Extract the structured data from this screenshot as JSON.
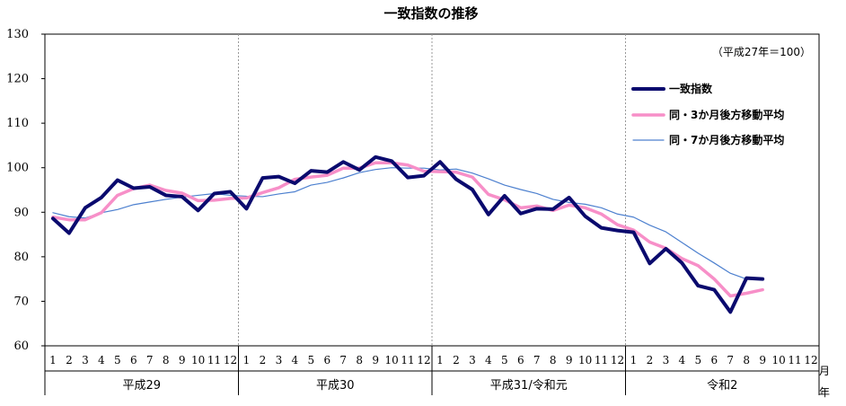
{
  "chart_data": {
    "type": "line",
    "title": "一致指数の推移",
    "note": "（平成27年＝100）",
    "ylim": [
      60,
      130
    ],
    "yticks": [
      "60",
      "70",
      "80",
      "90",
      "100",
      "110",
      "120",
      "130"
    ],
    "month_labels": [
      "1",
      "2",
      "3",
      "4",
      "5",
      "6",
      "7",
      "8",
      "9",
      "10",
      "11",
      "12"
    ],
    "years": [
      {
        "label": "平成29"
      },
      {
        "label": "平成30"
      },
      {
        "label": "平成31/令和元"
      },
      {
        "label": "令和2"
      }
    ],
    "x_unit_month": "月",
    "x_unit_year": "年",
    "series": [
      {
        "name": "一致指数",
        "color": "#0a0a6e",
        "values": [
          88.6,
          85.3,
          91.0,
          93.3,
          97.2,
          95.4,
          95.7,
          93.8,
          93.5,
          90.4,
          94.2,
          94.6,
          90.8,
          97.7,
          98.0,
          96.5,
          99.3,
          99.0,
          101.3,
          99.5,
          102.4,
          101.5,
          97.8,
          98.2,
          101.3,
          97.4,
          95.1,
          89.5,
          93.7,
          89.7,
          90.8,
          90.7,
          93.3,
          89.1,
          86.5,
          85.9,
          85.5,
          78.5,
          81.8,
          78.6,
          73.5,
          72.6,
          67.6,
          75.2,
          75.0
        ]
      },
      {
        "name": "同・3か月後方移動平均",
        "color": "#f78fc8",
        "values": [
          88.9,
          88.3,
          88.3,
          89.9,
          93.8,
          95.3,
          96.1,
          94.9,
          94.3,
          92.6,
          92.7,
          93.1,
          93.2,
          94.4,
          95.5,
          97.4,
          97.9,
          98.3,
          99.9,
          99.9,
          101.1,
          101.1,
          100.6,
          99.2,
          99.1,
          99.0,
          97.9,
          94.0,
          92.8,
          91.0,
          91.4,
          90.4,
          91.6,
          91.0,
          89.6,
          87.2,
          86.0,
          83.3,
          81.9,
          79.6,
          78.0,
          75.0,
          71.2,
          71.8,
          72.6
        ]
      },
      {
        "name": "同・7か月後方移動平均",
        "color": "#4d80cf",
        "values": [
          89.9,
          89.0,
          88.7,
          89.9,
          90.6,
          91.7,
          92.3,
          92.9,
          93.4,
          93.8,
          94.2,
          93.8,
          93.6,
          93.5,
          94.1,
          94.6,
          96.1,
          96.7,
          97.7,
          98.9,
          99.6,
          100.0,
          99.9,
          99.9,
          99.5,
          99.7,
          98.8,
          97.5,
          96.1,
          95.1,
          94.2,
          92.9,
          92.2,
          91.8,
          91.0,
          89.6,
          88.9,
          87.1,
          85.6,
          83.2,
          80.8,
          78.6,
          76.3,
          75.0,
          75.1
        ]
      }
    ],
    "legend_placement": "top-right",
    "grid": false
  }
}
